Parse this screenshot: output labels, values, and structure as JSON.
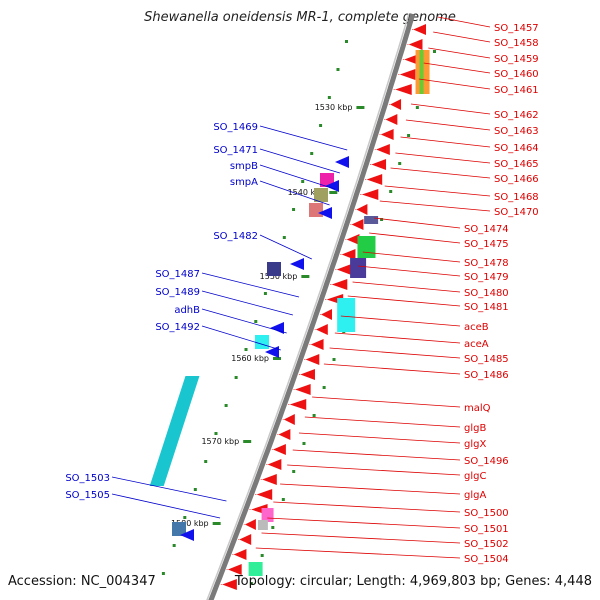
{
  "title": "Shewanella oneidensis MR-1, complete genome",
  "footer": {
    "accession": "Accession: NC_004347",
    "summary": "Topology: circular; Length: 4,969,803 bp; Genes: 4,448"
  },
  "colors": {
    "backbone": "#7a7a7a",
    "forward_label": "#0000cc",
    "reverse_label": "#e00000",
    "tick": "#2a8a2a"
  },
  "ticks": [
    "1530 kbp",
    "1540 kbp",
    "1550 kbp",
    "1560 kbp",
    "1570 kbp",
    "1580 kbp"
  ],
  "forward_genes": [
    "SO_1469",
    "SO_1471",
    "smpB",
    "smpA",
    "SO_1482",
    "SO_1487",
    "SO_1489",
    "adhB",
    "SO_1492",
    "SO_1503",
    "SO_1505"
  ],
  "reverse_genes": [
    "SO_1457",
    "SO_1458",
    "SO_1459",
    "SO_1460",
    "SO_1461",
    "SO_1462",
    "SO_1463",
    "SO_1464",
    "SO_1465",
    "SO_1466",
    "SO_1468",
    "SO_1470",
    "SO_1474",
    "SO_1475",
    "SO_1478",
    "SO_1479",
    "SO_1480",
    "SO_1481",
    "aceB",
    "aceA",
    "SO_1485",
    "SO_1486",
    "malQ",
    "glgB",
    "glgX",
    "SO_1496",
    "glgC",
    "glgA",
    "SO_1500",
    "SO_1501",
    "SO_1502",
    "SO_1504"
  ]
}
